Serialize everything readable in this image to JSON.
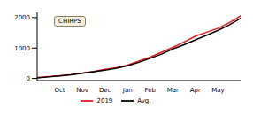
{
  "chart_data": {
    "type": "line",
    "annotation": "CHIRPS",
    "categories": [
      null,
      null,
      "Oct",
      null,
      "Nov",
      null,
      "Dec",
      null,
      "Jan",
      null,
      "Feb",
      null,
      "Mar",
      null,
      "Apr",
      null,
      "May",
      null,
      null
    ],
    "series": [
      {
        "name": "2019",
        "color": "#e41a1c",
        "values": [
          30,
          60,
          90,
          130,
          180,
          230,
          300,
          350,
          440,
          570,
          700,
          860,
          1020,
          1200,
          1390,
          1520,
          1650,
          1830,
          2060
        ]
      },
      {
        "name": "Avg.",
        "color": "#000000",
        "values": [
          20,
          50,
          80,
          120,
          170,
          220,
          270,
          340,
          420,
          530,
          660,
          800,
          970,
          1110,
          1270,
          1420,
          1580,
          1760,
          1980
        ]
      }
    ],
    "ylim": [
      -70,
      2170
    ],
    "yticks": [
      0,
      1000,
      2000
    ],
    "legend": "bottom"
  }
}
